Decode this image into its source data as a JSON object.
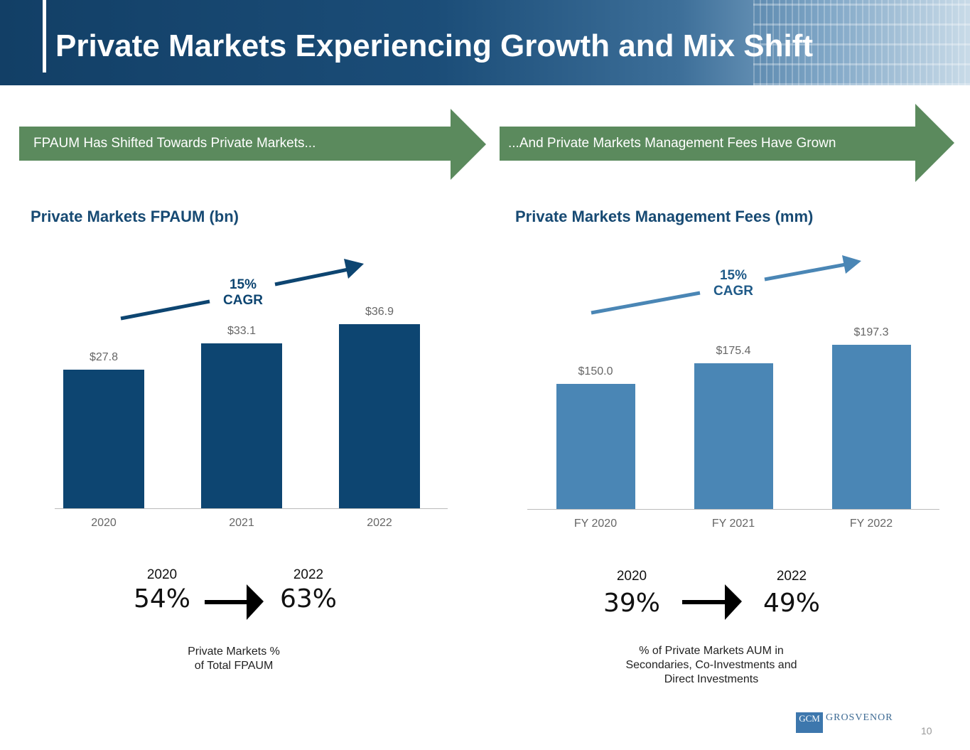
{
  "header": {
    "title": "Private Markets Experiencing Growth and Mix Shift"
  },
  "banners": [
    "FPAUM Has Shifted Towards Private Markets...",
    "...And Private Markets Management Fees Have Grown"
  ],
  "colors": {
    "left_bar": "#0d4571",
    "right_bar": "#4a86b5",
    "banner": "#5b8a5d"
  },
  "chart_data": [
    {
      "type": "bar",
      "title": "Private Markets FPAUM (bn)",
      "categories": [
        "2020",
        "2021",
        "2022"
      ],
      "values": [
        27.8,
        33.1,
        36.9
      ],
      "labels": [
        "$27.8",
        "$33.1",
        "$36.9"
      ],
      "annotation": [
        "15%",
        "CAGR"
      ],
      "ylim": [
        0,
        36.9
      ]
    },
    {
      "type": "bar",
      "title": "Private Markets Management Fees (mm)",
      "categories": [
        "FY 2020",
        "FY 2021",
        "FY 2022"
      ],
      "values": [
        150.0,
        175.4,
        197.3
      ],
      "labels": [
        "$150.0",
        "$175.4",
        "$197.3"
      ],
      "annotation": [
        "15%",
        "CAGR"
      ],
      "ylim": [
        0,
        197.3
      ]
    }
  ],
  "stats": [
    {
      "from_year": "2020",
      "from": "54%",
      "to_year": "2022",
      "to": "63%",
      "caption": [
        "Private Markets %",
        "of Total FPAUM"
      ]
    },
    {
      "from_year": "2020",
      "from": "39%",
      "to_year": "2022",
      "to": "49%",
      "caption": [
        "% of Private Markets AUM in",
        "Secondaries, Co-Investments and",
        "Direct Investments"
      ]
    }
  ],
  "footer": {
    "logo_left": "GCM",
    "logo_right": "GROSVENOR",
    "page": "10"
  }
}
